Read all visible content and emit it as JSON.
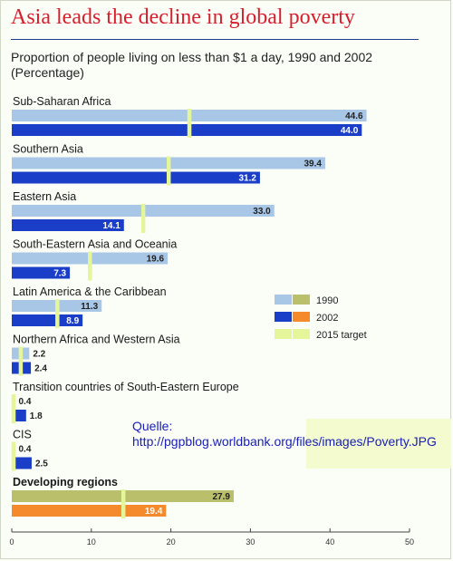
{
  "title": "Asia leads the decline in global poverty",
  "subtitle_line1": "Proportion of people living on less than $1 a day, 1990 and 2002",
  "subtitle_line2": "(Percentage)",
  "source_line1": "Quelle:",
  "source_line2": "http://pgpblog.worldbank.org/files/images/Poverty.JPG",
  "colors": {
    "bar_1990": "#a8c6e6",
    "bar_2002": "#1b3ec9",
    "dev_1990": "#b9bf6a",
    "dev_2002": "#f58a2d",
    "target": "#e4f59a",
    "val_1990_text": "#222222",
    "val_2002_text": "#ffffff"
  },
  "chart_data": {
    "type": "bar",
    "orientation": "horizontal",
    "xlim": [
      0,
      50
    ],
    "xticks": [
      "0",
      "10",
      "20",
      "30",
      "40",
      "50"
    ],
    "legend": {
      "position": "right",
      "items": [
        {
          "label": "1990"
        },
        {
          "label": "2002"
        },
        {
          "label": "2015 target"
        }
      ]
    },
    "categories": [
      {
        "name": "Sub-Saharan Africa",
        "v1990": 44.6,
        "l1990": "44.6",
        "v2002": 44.0,
        "l2002": "44.0",
        "target": 22.3,
        "highlight": false
      },
      {
        "name": "Southern Asia",
        "v1990": 39.4,
        "l1990": "39.4",
        "v2002": 31.2,
        "l2002": "31.2",
        "target": 19.7,
        "highlight": false
      },
      {
        "name": "Eastern Asia",
        "v1990": 33.0,
        "l1990": "33.0",
        "v2002": 14.1,
        "l2002": "14.1",
        "target": 16.5,
        "highlight": false
      },
      {
        "name": "South-Eastern Asia and Oceania",
        "v1990": 19.6,
        "l1990": "19.6",
        "v2002": 7.3,
        "l2002": "7.3",
        "target": 9.8,
        "highlight": false
      },
      {
        "name": "Latin America & the Caribbean",
        "v1990": 11.3,
        "l1990": "11.3",
        "v2002": 8.9,
        "l2002": "8.9",
        "target": 5.7,
        "highlight": false
      },
      {
        "name": "Northern Africa and Western Asia",
        "v1990": 2.2,
        "l1990": "2.2",
        "v2002": 2.4,
        "l2002": "2.4",
        "target": 1.1,
        "highlight": false
      },
      {
        "name": "Transition countries of South-Eastern Europe",
        "v1990": 0.4,
        "l1990": "0.4",
        "v2002": 1.8,
        "l2002": "1.8",
        "target": 0.2,
        "highlight": false
      },
      {
        "name": "CIS",
        "v1990": 0.4,
        "l1990": "0.4",
        "v2002": 2.5,
        "l2002": "2.5",
        "target": 0.2,
        "highlight": false
      },
      {
        "name": "Developing regions",
        "v1990": 27.9,
        "l1990": "27.9",
        "v2002": 19.4,
        "l2002": "19.4",
        "target": 14.0,
        "highlight": true
      }
    ]
  }
}
